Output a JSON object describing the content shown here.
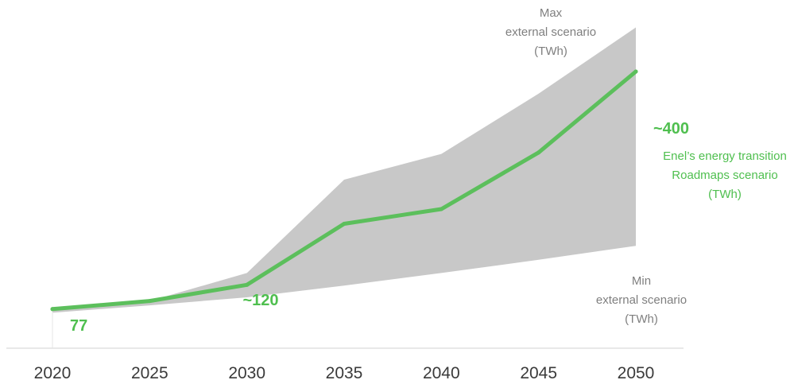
{
  "chart_data": {
    "type": "area",
    "x": [
      2020,
      2025,
      2030,
      2035,
      2040,
      2045,
      2050
    ],
    "tick_labels": [
      "2020",
      "2025",
      "2030",
      "2035",
      "2040",
      "2045",
      "2050"
    ],
    "ylim": [
      0,
      450
    ],
    "series": [
      {
        "name": "Max external scenario (TWh)",
        "role": "band-upper",
        "values": [
          77,
          88,
          126,
          253,
          288,
          370,
          460
        ]
      },
      {
        "name": "Min external scenario (TWh)",
        "role": "band-lower",
        "values": [
          72,
          82,
          93,
          109,
          126,
          144,
          163
        ]
      },
      {
        "name": "Enel's energy transition Roadmaps scenario (TWh)",
        "role": "line",
        "values": [
          77,
          88,
          110,
          193,
          213,
          290,
          400
        ]
      }
    ],
    "annotations": {
      "start_value": "77",
      "mid_value": "~120",
      "end_value": "~400"
    },
    "legend": {
      "max": [
        "Max",
        "external scenario",
        "(TWh)"
      ],
      "enel": [
        "Enel’s energy transition",
        "Roadmaps scenario",
        "(TWh)"
      ],
      "min": [
        "Min",
        "external scenario",
        "(TWh)"
      ]
    },
    "colors": {
      "band": "#c8c8c8",
      "line": "#5cbf5c",
      "axis": "#d9d9d9",
      "label_grey": "#7f7f7f",
      "label_green": "#4fbf4f"
    },
    "grid": false
  }
}
